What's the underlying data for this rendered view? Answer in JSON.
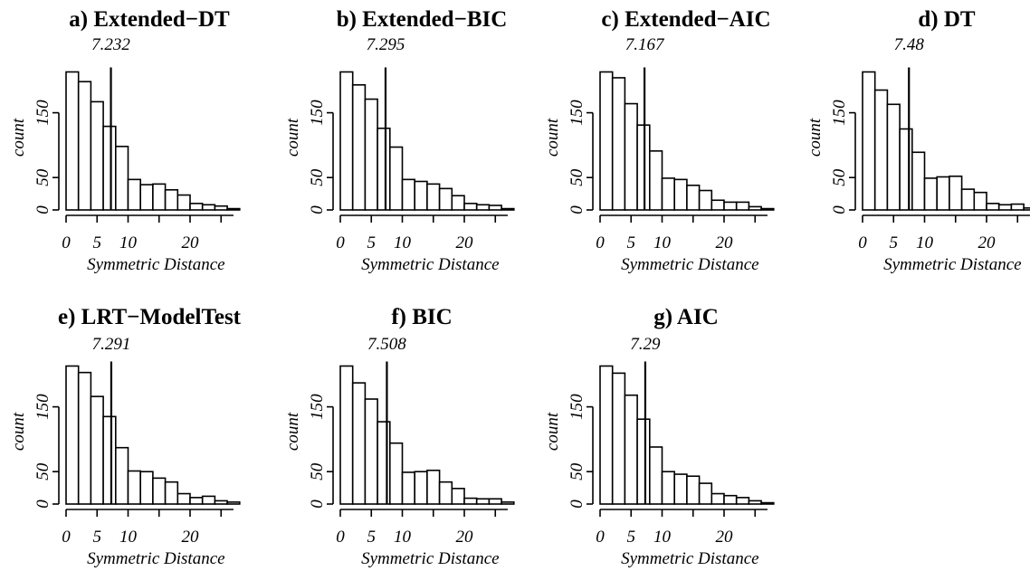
{
  "chart_data": [
    {
      "type": "bar",
      "title": "a) Extended−DT",
      "mean_label": "7.232",
      "mean": 7.232,
      "bin_width": 2,
      "bin_start": 0,
      "values": [
        213,
        198,
        167,
        129,
        98,
        47,
        39,
        40,
        31,
        23,
        10,
        8,
        6,
        2
      ],
      "xlabel": "Symmetric Distance",
      "ylabel": "count",
      "xticks": [
        0,
        5,
        10,
        20
      ],
      "yticks": [
        0,
        50,
        150
      ],
      "ylim": [
        0,
        230
      ]
    },
    {
      "type": "bar",
      "title": "b) Extended−BIC",
      "mean_label": "7.295",
      "mean": 7.295,
      "bin_width": 2,
      "bin_start": 0,
      "values": [
        213,
        193,
        171,
        126,
        97,
        47,
        44,
        40,
        33,
        22,
        10,
        8,
        7,
        2
      ],
      "xlabel": "Symmetric Distance",
      "ylabel": "count",
      "xticks": [
        0,
        5,
        10,
        20
      ],
      "yticks": [
        0,
        50,
        150
      ],
      "ylim": [
        0,
        230
      ]
    },
    {
      "type": "bar",
      "title": "c) Extended−AIC",
      "mean_label": "7.167",
      "mean": 7.167,
      "bin_width": 2,
      "bin_start": 0,
      "values": [
        213,
        204,
        164,
        131,
        91,
        49,
        47,
        38,
        30,
        15,
        12,
        12,
        5,
        2
      ],
      "xlabel": "Symmetric Distance",
      "ylabel": "count",
      "xticks": [
        0,
        5,
        10,
        20
      ],
      "yticks": [
        0,
        50,
        150
      ],
      "ylim": [
        0,
        230
      ]
    },
    {
      "type": "bar",
      "title": "d) DT",
      "mean_label": "7.48",
      "mean": 7.48,
      "bin_width": 2,
      "bin_start": 0,
      "values": [
        213,
        185,
        163,
        125,
        89,
        49,
        51,
        52,
        32,
        27,
        10,
        8,
        9,
        3
      ],
      "xlabel": "Symmetric Distance",
      "ylabel": "count",
      "xticks": [
        0,
        5,
        10,
        20
      ],
      "yticks": [
        0,
        50,
        150
      ],
      "ylim": [
        0,
        230
      ]
    },
    {
      "type": "bar",
      "title": "e) LRT−ModelTest",
      "mean_label": "7.291",
      "mean": 7.291,
      "bin_width": 2,
      "bin_start": 0,
      "values": [
        213,
        203,
        166,
        135,
        87,
        51,
        50,
        40,
        34,
        16,
        10,
        12,
        5,
        3
      ],
      "xlabel": "Symmetric Distance",
      "ylabel": "count",
      "xticks": [
        0,
        5,
        10,
        20
      ],
      "yticks": [
        0,
        50,
        150
      ],
      "ylim": [
        0,
        230
      ]
    },
    {
      "type": "bar",
      "title": "f) BIC",
      "mean_label": "7.508",
      "mean": 7.508,
      "bin_width": 2,
      "bin_start": 0,
      "values": [
        213,
        187,
        162,
        127,
        94,
        49,
        50,
        52,
        34,
        24,
        9,
        8,
        8,
        3
      ],
      "xlabel": "Symmetric Distance",
      "ylabel": "count",
      "xticks": [
        0,
        5,
        10,
        20
      ],
      "yticks": [
        0,
        50,
        150
      ],
      "ylim": [
        0,
        230
      ]
    },
    {
      "type": "bar",
      "title": "g) AIC",
      "mean_label": "7.29",
      "mean": 7.29,
      "bin_width": 2,
      "bin_start": 0,
      "values": [
        213,
        202,
        168,
        131,
        88,
        50,
        46,
        43,
        32,
        16,
        13,
        10,
        5,
        2
      ],
      "xlabel": "Symmetric Distance",
      "ylabel": "count",
      "xticks": [
        0,
        5,
        10,
        20
      ],
      "yticks": [
        0,
        50,
        150
      ],
      "ylim": [
        0,
        230
      ]
    }
  ]
}
